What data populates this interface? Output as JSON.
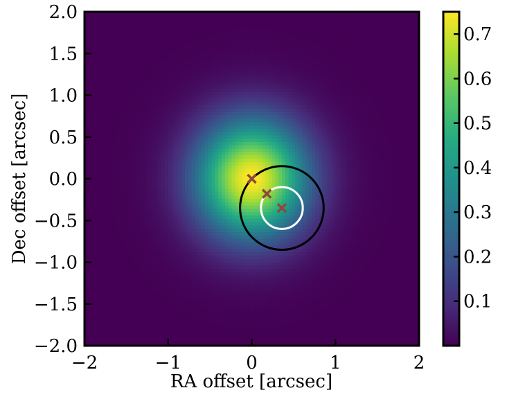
{
  "chart_data": {
    "type": "heatmap",
    "title": "",
    "xlabel": "RA offset [arcsec]",
    "ylabel": "Dec offset [arcsec]",
    "xlim": [
      -2.0,
      2.0
    ],
    "ylim": [
      -2.0,
      2.0
    ],
    "x_ticks": [
      -2,
      -1,
      0,
      1,
      2
    ],
    "x_tick_labels": [
      "−2",
      "−1",
      "0",
      "1",
      "2"
    ],
    "y_ticks": [
      2.0,
      1.5,
      1.0,
      0.5,
      0.0,
      -0.5,
      -1.0,
      -1.5,
      -2.0
    ],
    "y_tick_labels": [
      "2.0",
      "1.5",
      "1.0",
      "0.5",
      "0.0",
      "−0.5",
      "−1.0",
      "−1.5",
      "−2.0"
    ],
    "colormap": "viridis",
    "colorbar": {
      "range": [
        0.0,
        0.75
      ],
      "ticks": [
        0.1,
        0.2,
        0.3,
        0.4,
        0.5,
        0.6,
        0.7
      ],
      "tick_labels": [
        "0.1",
        "0.2",
        "0.3",
        "0.4",
        "0.5",
        "0.6",
        "0.7"
      ]
    },
    "blob": {
      "center": [
        0.0,
        0.0
      ],
      "sigma_ra": 0.47,
      "sigma_dec": 0.5,
      "peak": 0.75
    },
    "markers": [
      {
        "x": 0.0,
        "y": 0.0,
        "symbol": "x",
        "color": "#8b4a3a"
      },
      {
        "x": 0.18,
        "y": -0.18,
        "symbol": "x",
        "color": "#8b4a3a"
      },
      {
        "x": 0.36,
        "y": -0.35,
        "symbol": "x",
        "color": "#8b4a3a"
      }
    ],
    "circles": [
      {
        "cx": 0.36,
        "cy": -0.35,
        "r": 0.5,
        "color": "#000000"
      },
      {
        "cx": 0.36,
        "cy": -0.35,
        "r": 0.25,
        "color": "#ffffff"
      }
    ]
  }
}
